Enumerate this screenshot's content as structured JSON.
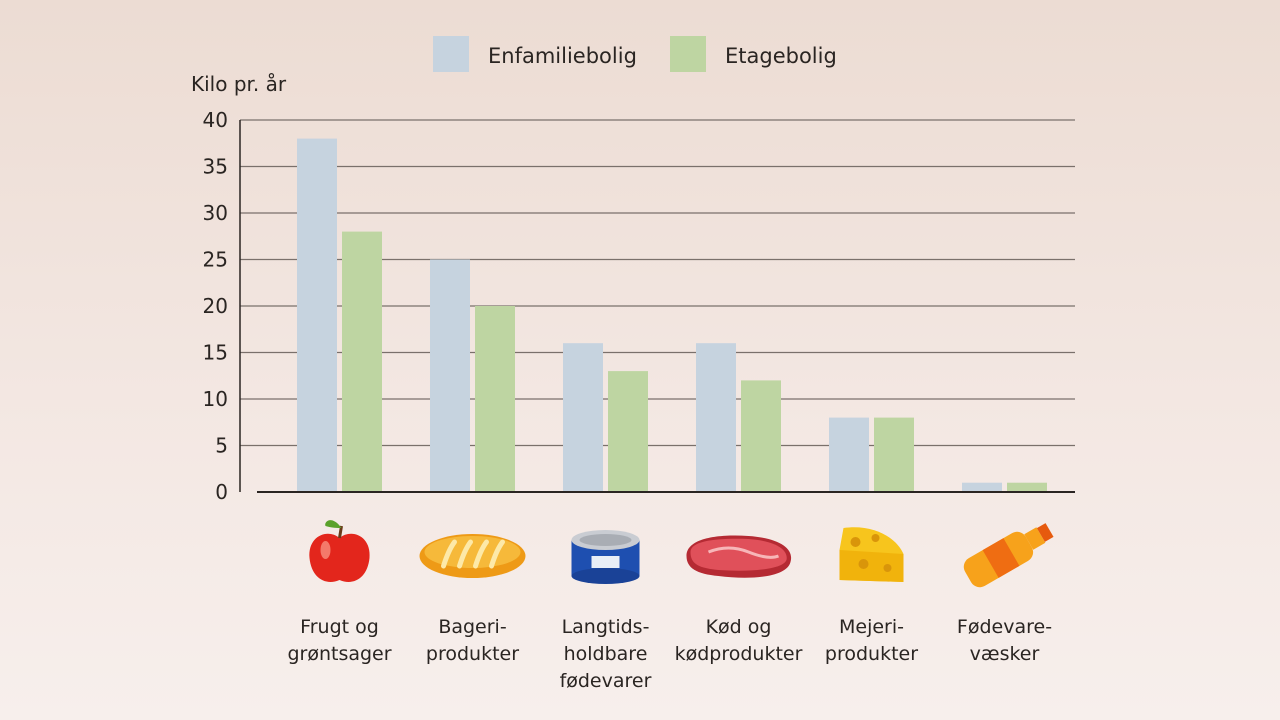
{
  "chart_data": {
    "type": "bar",
    "title": "",
    "ylabel": "Kilo pr. år",
    "xlabel": "",
    "ylim": [
      0,
      40
    ],
    "yticks": [
      0,
      5,
      10,
      15,
      20,
      25,
      30,
      35,
      40
    ],
    "grid": true,
    "legend_position": "top",
    "categories": [
      [
        "Frugt og",
        "grøntsager"
      ],
      [
        "Bageri-",
        "produkter"
      ],
      [
        "Langtids-",
        "holdbare",
        "fødevarer"
      ],
      [
        "Kød og",
        "kødprodukter"
      ],
      [
        "Mejeri-",
        "produkter"
      ],
      [
        "Fødevare-",
        "væsker"
      ]
    ],
    "category_icons": [
      "apple-icon",
      "bread-icon",
      "canned-food-icon",
      "meat-icon",
      "cheese-icon",
      "juice-bottle-icon"
    ],
    "series": [
      {
        "name": "Enfamiliebolig",
        "color": "#c6d3df",
        "values": [
          38,
          25,
          16,
          16,
          8,
          1
        ]
      },
      {
        "name": "Etagebolig",
        "color": "#bed5a2",
        "values": [
          28,
          20,
          13,
          12,
          8,
          1
        ]
      }
    ]
  }
}
